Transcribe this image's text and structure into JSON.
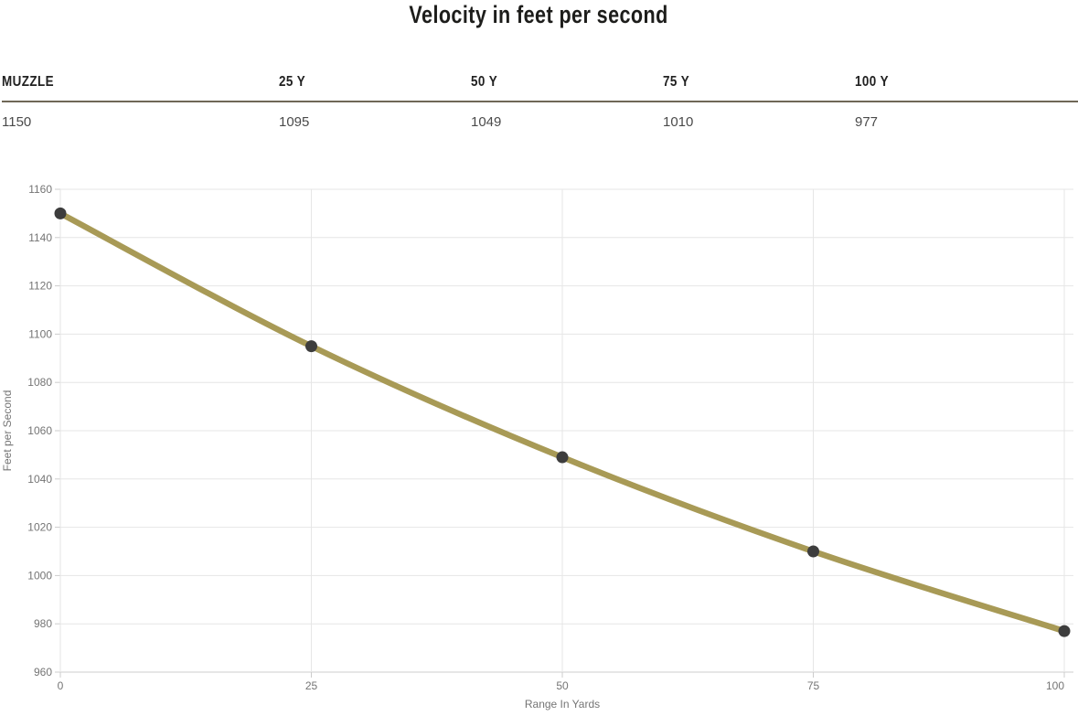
{
  "title": "Velocity in feet per second",
  "table": {
    "headers": [
      "MUZZLE",
      "25 Y",
      "50 Y",
      "75 Y",
      "100 Y"
    ],
    "values": [
      "1150",
      "1095",
      "1049",
      "1010",
      "977"
    ]
  },
  "chart_data": {
    "type": "line",
    "x": [
      0,
      25,
      50,
      75,
      100
    ],
    "values": [
      1150,
      1095,
      1049,
      1010,
      977
    ],
    "title": "",
    "xlabel": "Range In Yards",
    "ylabel": "Feet per Second",
    "xlim": [
      0,
      100
    ],
    "ylim": [
      960,
      1160
    ],
    "xticks": [
      0,
      25,
      50,
      75,
      100
    ],
    "yticks": [
      960,
      980,
      1000,
      1020,
      1040,
      1060,
      1080,
      1100,
      1120,
      1140,
      1160
    ],
    "grid": true,
    "legend": "none",
    "line_color": "#a89a56",
    "marker_color": "#3d3d3d",
    "gridline_color": "#e6e6e6",
    "axis_line_color": "#cccccc",
    "tick_label_color": "#757575",
    "axis_title_color": "#757575"
  },
  "colors": {
    "header_rule": "#6f6757",
    "title_text": "#1d1d1b",
    "header_text": "#222222",
    "value_text": "#4a4a4a"
  }
}
